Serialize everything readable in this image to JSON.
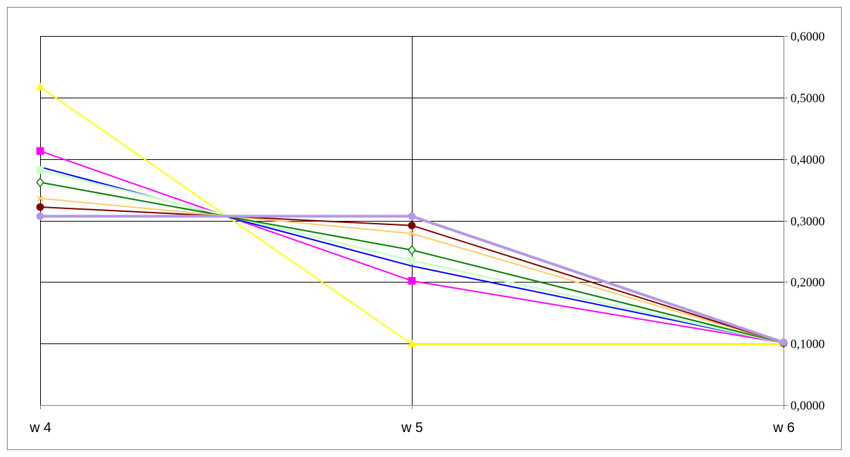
{
  "chart_data": {
    "type": "line",
    "title": "",
    "xlabel": "",
    "ylabel": "",
    "categories": [
      "w 4",
      "w 5",
      "w 6"
    ],
    "ylim": [
      0,
      0.6
    ],
    "y_ticks": [
      0,
      0.1,
      0.2,
      0.3,
      0.4,
      0.5,
      0.6
    ],
    "y_tick_labels": [
      "0,0000",
      "0,1000",
      "0,2000",
      "0,3000",
      "0,4000",
      "0,5000",
      "0,6000"
    ],
    "y_axis_side": "right",
    "grid": true,
    "legend": false,
    "series": [
      {
        "values": [
          0.517,
          0.099,
          0.099
        ],
        "color": "#FFFF00",
        "marker": "triangle"
      },
      {
        "values": [
          0.413,
          0.202,
          0.101
        ],
        "color": "#FF00FF",
        "marker": "square"
      },
      {
        "values": [
          0.387,
          0.226,
          0.101
        ],
        "color": "#0000FF",
        "marker": "none"
      },
      {
        "values": [
          0.382,
          0.235,
          0.101
        ],
        "color": "#CCFFCC",
        "marker": "square"
      },
      {
        "values": [
          0.362,
          0.252,
          0.101
        ],
        "color": "#008000",
        "marker": "diamond"
      },
      {
        "values": [
          0.336,
          0.279,
          0.101
        ],
        "color": "#FFCC66",
        "marker": "x"
      },
      {
        "values": [
          0.322,
          0.292,
          0.101
        ],
        "color": "#800000",
        "marker": "circle"
      },
      {
        "values": [
          0.307,
          0.307,
          0.102
        ],
        "color": "#B399E6",
        "marker": "circle"
      }
    ]
  }
}
